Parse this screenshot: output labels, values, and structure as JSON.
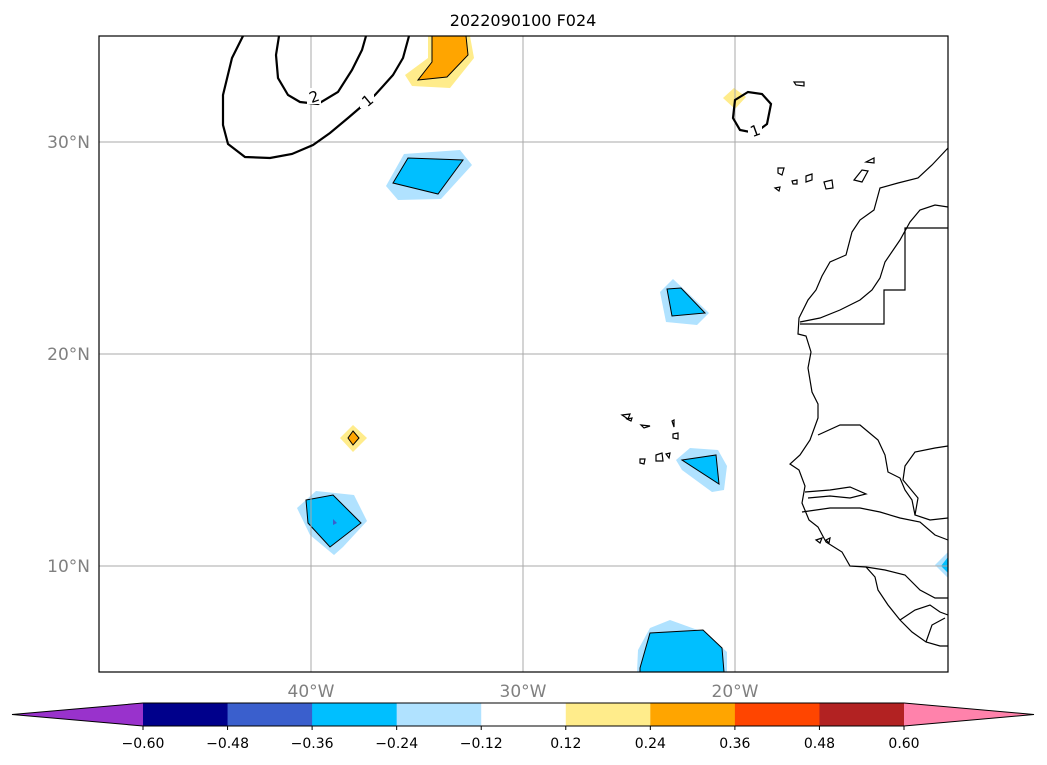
{
  "figure": {
    "title": "2022090100 F024"
  },
  "map": {
    "projection": "lat-lon",
    "lon_range": [
      -50,
      -10
    ],
    "lat_range": [
      5,
      35
    ],
    "gridlines": true,
    "lon_labels": [
      "40°W",
      "30°W",
      "20°W"
    ],
    "lat_labels": [
      "30°N",
      "20°N",
      "10°N"
    ],
    "contour_labels": [
      "2",
      "1",
      "1"
    ]
  },
  "colorbar": {
    "orientation": "horizontal",
    "extend": "both",
    "tick_labels": [
      "−0.60",
      "−0.48",
      "−0.36",
      "−0.24",
      "−0.12",
      "0.12",
      "0.24",
      "0.36",
      "0.48",
      "0.60"
    ],
    "colors": [
      "#9932cc",
      "#00008b",
      "#3a5fcd",
      "#00bfff",
      "#b0e2ff",
      "#ffffff",
      "#ffec8b",
      "#ffa500",
      "#ff4500",
      "#b22222",
      "#ff82ab"
    ]
  },
  "colors": {
    "grid": "#aaaaaa",
    "coast": "#000000",
    "frame": "#000000"
  }
}
